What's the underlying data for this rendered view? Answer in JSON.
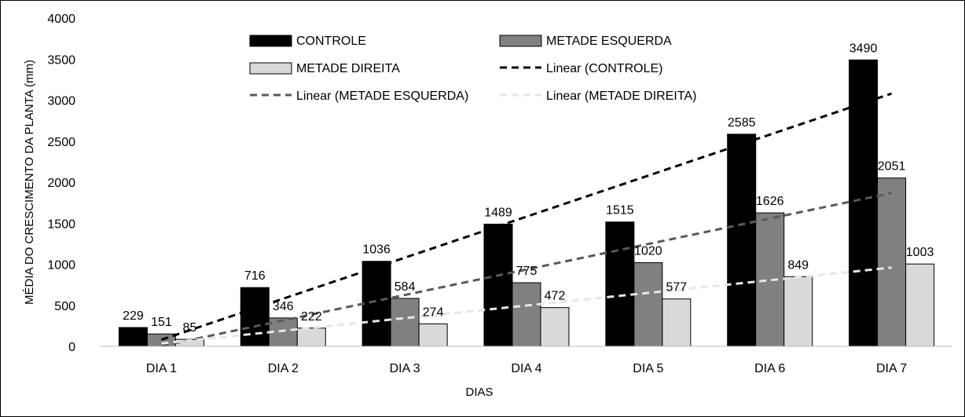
{
  "chart_data": {
    "type": "bar",
    "xlabel": "DIAS",
    "ylabel": "MÉDIA DO CRESCIMENTO DA PLANTA (mm)",
    "ylim": [
      0,
      4000
    ],
    "yticks": [
      0,
      500,
      1000,
      1500,
      2000,
      2500,
      3000,
      3500,
      4000
    ],
    "grid": false,
    "legend_position": "top",
    "categories": [
      "DIA 1",
      "DIA 2",
      "DIA 3",
      "DIA 4",
      "DIA 5",
      "DIA 6",
      "DIA 7"
    ],
    "series": [
      {
        "name": "CONTROLE",
        "color": "#000000",
        "values": [
          229,
          716,
          1036,
          1489,
          1515,
          2585,
          3490
        ]
      },
      {
        "name": "METADE ESQUERDA",
        "color": "#808080",
        "values": [
          151,
          346,
          584,
          775,
          1020,
          1626,
          2051
        ]
      },
      {
        "name": "METADE DIREITA",
        "color": "#d9d9d9",
        "values": [
          85,
          222,
          274,
          472,
          577,
          849,
          1003
        ]
      }
    ],
    "trendlines": [
      {
        "name": "Linear (CONTROLE)",
        "color": "#000000",
        "type": "linear",
        "of_series": 0
      },
      {
        "name": "Linear (METADE ESQUERDA)",
        "color": "#595959",
        "type": "linear",
        "of_series": 1
      },
      {
        "name": "Linear (METADE DIREITA)",
        "color": "#e6e6e6",
        "type": "linear",
        "of_series": 2
      }
    ]
  }
}
